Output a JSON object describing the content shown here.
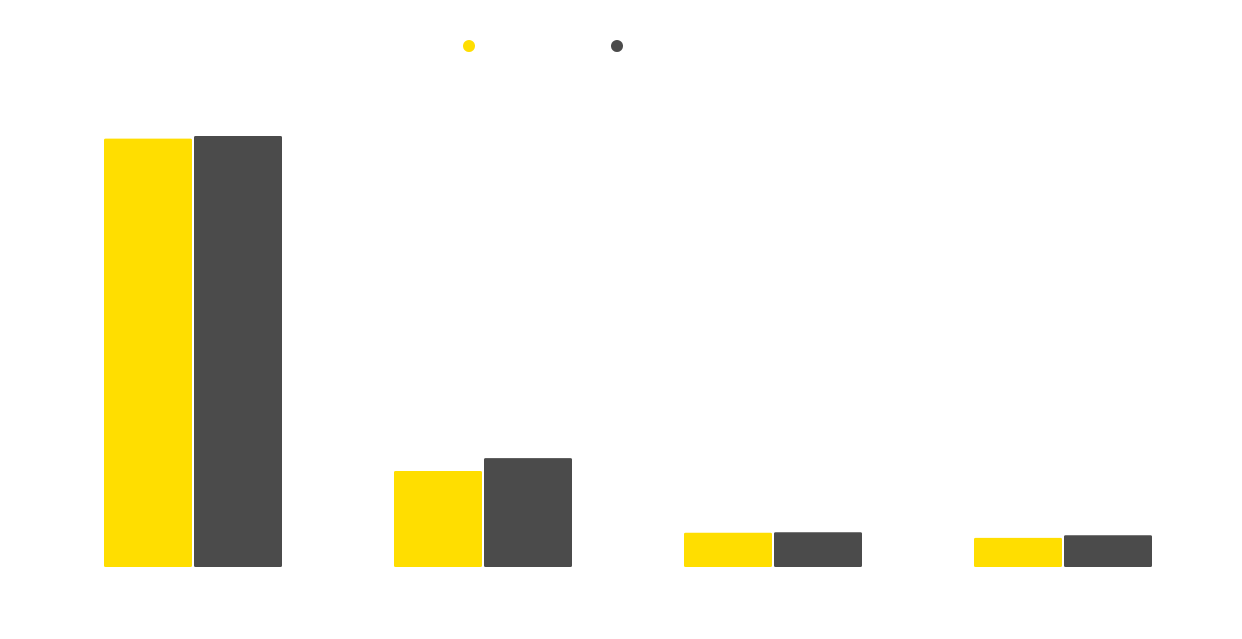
{
  "chart_data": {
    "type": "bar",
    "categories": [
      "",
      "",
      "",
      ""
    ],
    "series": [
      {
        "color": "#FFDE00",
        "values": [
          100,
          22.4,
          8,
          6.8
        ]
      },
      {
        "color": "#4B4B4B",
        "values": [
          100.6,
          25.4,
          8.1,
          7.4
        ]
      }
    ],
    "ylim": [
      0,
      100.6
    ],
    "grid": false,
    "legend": {
      "placement": "top",
      "marker": "circle"
    }
  }
}
